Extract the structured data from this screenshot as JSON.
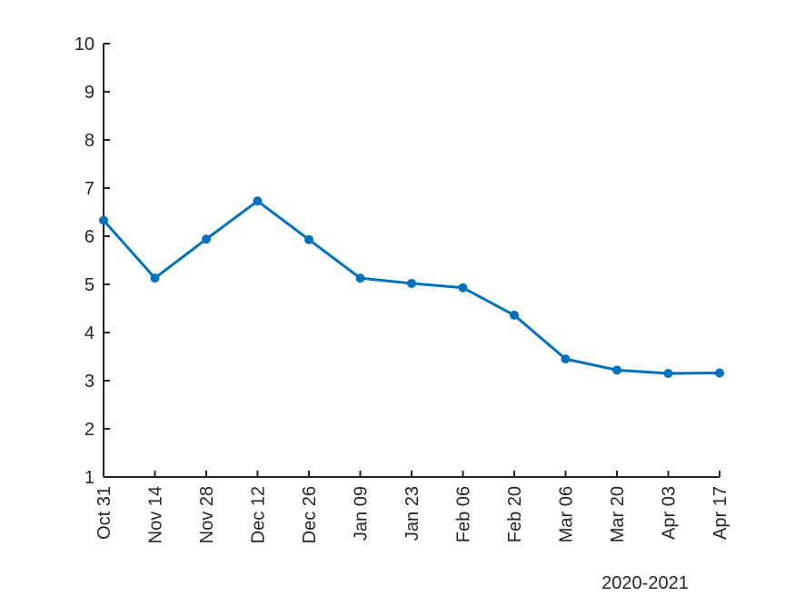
{
  "chart_data": {
    "type": "line",
    "title": "",
    "xlabel": "",
    "ylabel": "",
    "x_sublabel": "2020-2021",
    "categories": [
      "Oct 31",
      "Nov 14",
      "Nov 28",
      "Dec 12",
      "Dec 26",
      "Jan 09",
      "Jan 23",
      "Feb 06",
      "Feb 20",
      "Mar 06",
      "Mar 20",
      "Apr 03",
      "Apr 17"
    ],
    "series": [
      {
        "values": [
          6.33,
          5.13,
          5.94,
          6.73,
          5.93,
          5.13,
          5.02,
          4.93,
          4.36,
          3.45,
          3.22,
          3.15,
          3.16
        ],
        "color": "#0072BD"
      }
    ],
    "ylim": [
      1,
      10
    ],
    "yticks": [
      1,
      2,
      3,
      4,
      5,
      6,
      7,
      8,
      9,
      10
    ],
    "grid": false,
    "legend": "none"
  }
}
